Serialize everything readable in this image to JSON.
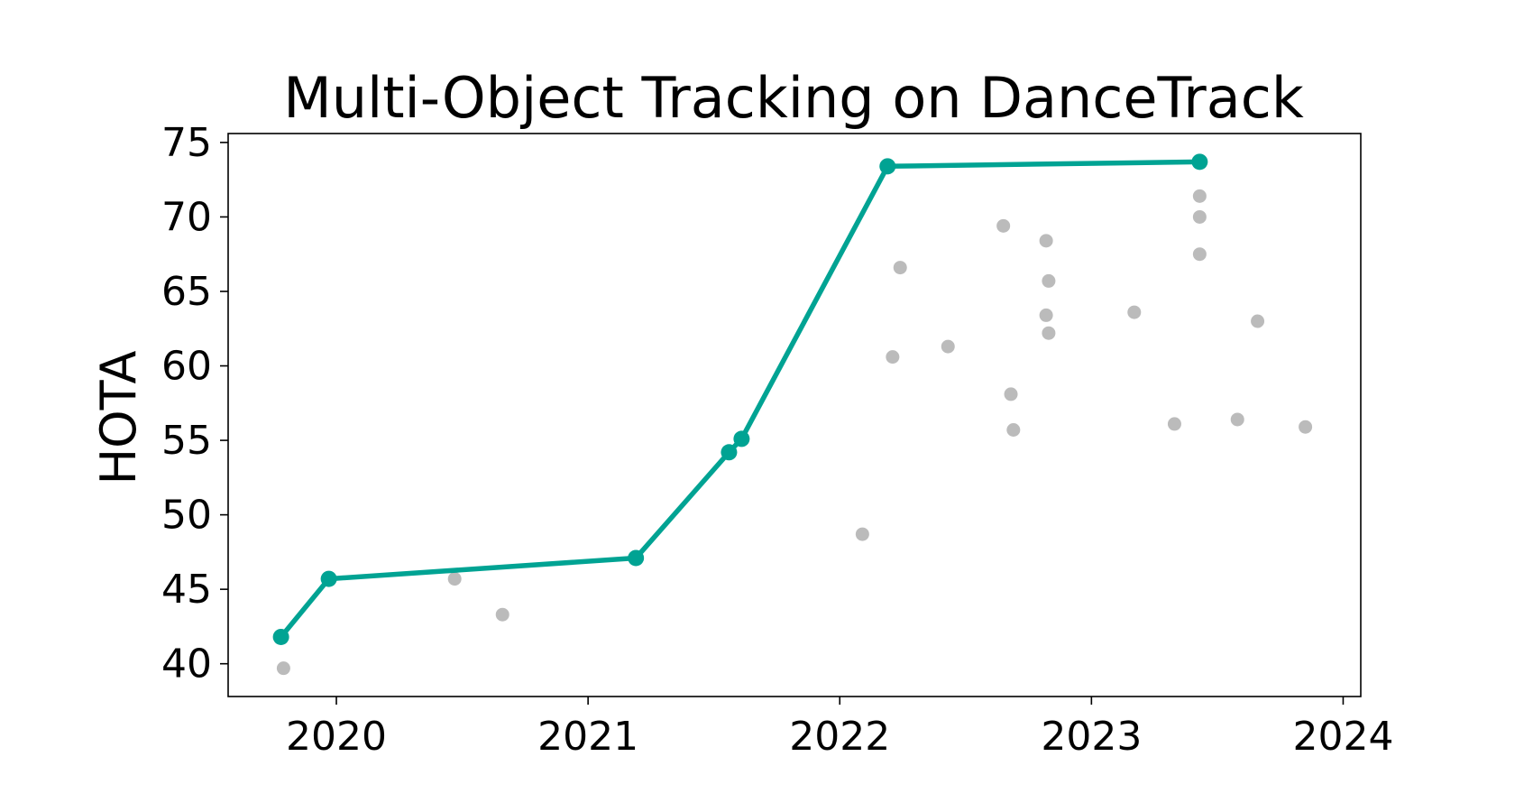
{
  "chart_data": {
    "type": "scatter",
    "title": "Multi-Object Tracking on DanceTrack",
    "xlabel": "",
    "ylabel": "HOTA",
    "xlim": [
      2019.57,
      2024.07
    ],
    "ylim": [
      37.8,
      75.6
    ],
    "xticks": [
      2020,
      2021,
      2022,
      2023,
      2024
    ],
    "xtick_labels": [
      "2020",
      "2021",
      "2022",
      "2023",
      "2024"
    ],
    "yticks": [
      40,
      45,
      50,
      55,
      60,
      65,
      70,
      75
    ],
    "ytick_labels": [
      "40",
      "45",
      "50",
      "55",
      "60",
      "65",
      "70",
      "75"
    ],
    "grid": false,
    "legend": "none",
    "colors": {
      "sota": "#00a393",
      "other": "#bbbbbb"
    },
    "series": [
      {
        "role": "state-of-the-art",
        "points": [
          [
            2019.78,
            41.8
          ],
          [
            2019.97,
            45.7
          ],
          [
            2021.19,
            47.1
          ],
          [
            2021.56,
            54.2
          ],
          [
            2021.61,
            55.1
          ],
          [
            2022.19,
            73.4
          ],
          [
            2023.43,
            73.7
          ]
        ]
      },
      {
        "role": "other",
        "points": [
          [
            2019.79,
            39.7
          ],
          [
            2020.47,
            45.7
          ],
          [
            2020.66,
            43.3
          ],
          [
            2022.09,
            48.7
          ],
          [
            2022.21,
            60.6
          ],
          [
            2022.24,
            66.6
          ],
          [
            2022.43,
            61.3
          ],
          [
            2022.65,
            69.4
          ],
          [
            2022.68,
            58.1
          ],
          [
            2022.69,
            55.7
          ],
          [
            2022.82,
            68.4
          ],
          [
            2022.82,
            63.4
          ],
          [
            2022.83,
            65.7
          ],
          [
            2022.83,
            62.2
          ],
          [
            2023.17,
            63.6
          ],
          [
            2023.33,
            56.1
          ],
          [
            2023.43,
            71.4
          ],
          [
            2023.43,
            70.0
          ],
          [
            2023.43,
            67.5
          ],
          [
            2023.58,
            56.4
          ],
          [
            2023.66,
            63.0
          ],
          [
            2023.85,
            55.9
          ]
        ]
      }
    ]
  }
}
